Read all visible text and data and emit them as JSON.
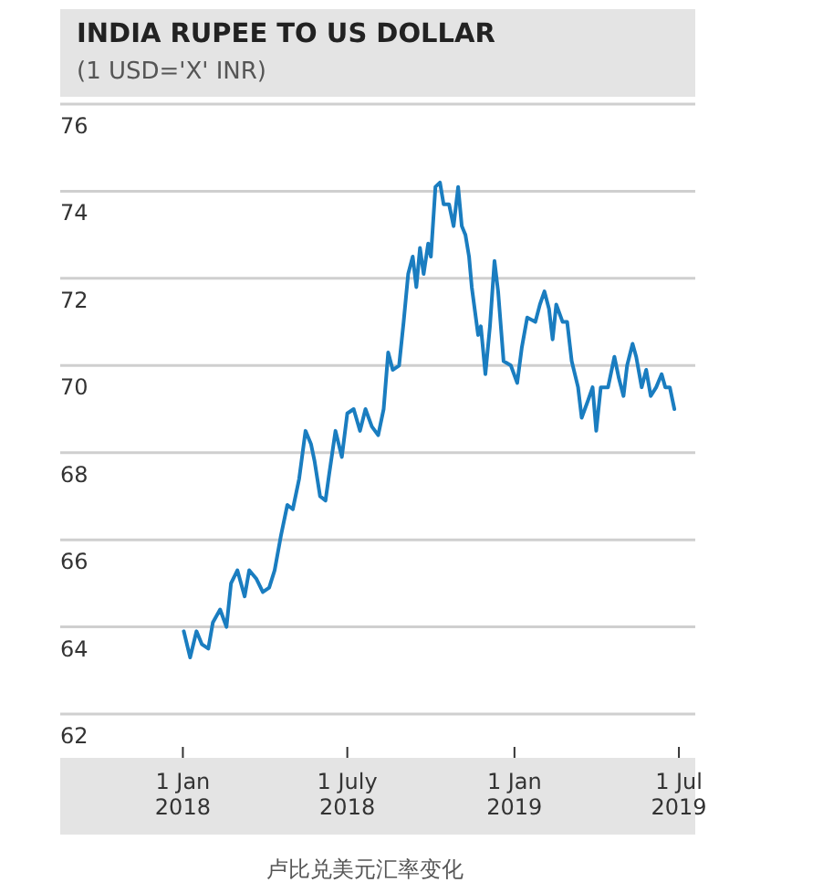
{
  "chart_data": {
    "type": "line",
    "title": "INDIA RUPEE TO US DOLLAR",
    "subtitle": "(1 USD='X' INR)",
    "annotations": [
      "卢比兑美元汇率变化"
    ],
    "xlim": [
      "2017-08-19",
      "2019-07-19"
    ],
    "xticks": [
      {
        "value": "2018-01-01",
        "label": "1 Jan 2018"
      },
      {
        "value": "2018-07-01",
        "label": "1 July 2018"
      },
      {
        "value": "2019-01-01",
        "label": "1 Jan 2019"
      },
      {
        "value": "2019-07-01",
        "label": "1 Jul 2019"
      }
    ],
    "ylim": [
      62,
      76
    ],
    "yticks": [
      62,
      64,
      66,
      68,
      70,
      72,
      74,
      76
    ],
    "grid": "y",
    "marker": "none",
    "line_style": "solid",
    "x": [
      "2018-01-02",
      "2018-01-09",
      "2018-01-16",
      "2018-01-22",
      "2018-01-29",
      "2018-02-03",
      "2018-02-11",
      "2018-02-18",
      "2018-02-23",
      "2018-03-02",
      "2018-03-10",
      "2018-03-15",
      "2018-03-23",
      "2018-03-30",
      "2018-04-06",
      "2018-04-12",
      "2018-04-19",
      "2018-04-26",
      "2018-05-02",
      "2018-05-09",
      "2018-05-16",
      "2018-05-22",
      "2018-05-26",
      "2018-06-01",
      "2018-06-07",
      "2018-06-11",
      "2018-06-18",
      "2018-06-25",
      "2018-07-01",
      "2018-07-08",
      "2018-07-15",
      "2018-07-21",
      "2018-07-28",
      "2018-08-04",
      "2018-08-10",
      "2018-08-15",
      "2018-08-20",
      "2018-08-27",
      "2018-09-01",
      "2018-09-06",
      "2018-09-11",
      "2018-09-15",
      "2018-09-19",
      "2018-09-23",
      "2018-09-28",
      "2018-10-01",
      "2018-10-06",
      "2018-10-11",
      "2018-10-15",
      "2018-10-21",
      "2018-10-26",
      "2018-10-31",
      "2018-11-04",
      "2018-11-08",
      "2018-11-12",
      "2018-11-15",
      "2018-11-22",
      "2018-11-25",
      "2018-11-30",
      "2018-12-05",
      "2018-12-10",
      "2018-12-14",
      "2018-12-20",
      "2018-12-28",
      "2019-01-04",
      "2019-01-09",
      "2019-01-15",
      "2019-01-24",
      "2019-01-29",
      "2019-02-03",
      "2019-02-08",
      "2019-02-12",
      "2019-02-16",
      "2019-02-23",
      "2019-02-28",
      "2019-03-05",
      "2019-03-12",
      "2019-03-16",
      "2019-03-23",
      "2019-03-28",
      "2019-04-01",
      "2019-04-06",
      "2019-04-14",
      "2019-04-21",
      "2019-04-26",
      "2019-05-01",
      "2019-05-05",
      "2019-05-11",
      "2019-05-15",
      "2019-05-21",
      "2019-05-26",
      "2019-05-31",
      "2019-06-06",
      "2019-06-12",
      "2019-06-16",
      "2019-06-21",
      "2019-06-26"
    ],
    "series": [
      {
        "color": "#1a7dc0",
        "values": [
          63.9,
          63.3,
          63.9,
          63.6,
          63.5,
          64.1,
          64.4,
          64.0,
          65.0,
          65.3,
          64.7,
          65.3,
          65.1,
          64.8,
          64.9,
          65.3,
          66.1,
          66.8,
          66.7,
          67.4,
          68.5,
          68.2,
          67.8,
          67.0,
          66.9,
          67.5,
          68.5,
          67.9,
          68.9,
          69.0,
          68.5,
          69.0,
          68.6,
          68.4,
          69.0,
          70.3,
          69.9,
          70.0,
          71.0,
          72.1,
          72.5,
          71.8,
          72.7,
          72.1,
          72.8,
          72.5,
          74.1,
          74.2,
          73.7,
          73.7,
          73.2,
          74.1,
          73.2,
          73.0,
          72.5,
          71.8,
          70.7,
          70.9,
          69.8,
          70.9,
          72.4,
          71.7,
          70.1,
          70.0,
          69.6,
          70.4,
          71.1,
          71.0,
          71.4,
          71.7,
          71.3,
          70.6,
          71.4,
          71.0,
          71.0,
          70.1,
          69.5,
          68.8,
          69.2,
          69.5,
          68.5,
          69.5,
          69.5,
          70.2,
          69.7,
          69.3,
          70.0,
          70.5,
          70.2,
          69.5,
          69.9,
          69.3,
          69.5,
          69.8,
          69.5,
          69.5,
          69.0
        ]
      }
    ]
  }
}
